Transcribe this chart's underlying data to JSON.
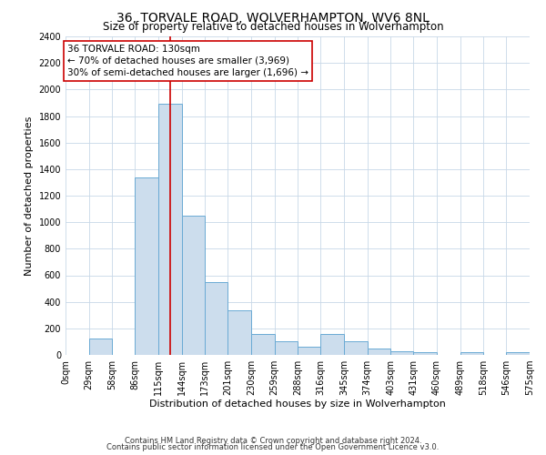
{
  "title": "36, TORVALE ROAD, WOLVERHAMPTON, WV6 8NL",
  "subtitle": "Size of property relative to detached houses in Wolverhampton",
  "xlabel": "Distribution of detached houses by size in Wolverhampton",
  "ylabel": "Number of detached properties",
  "bin_edges": [
    0,
    29,
    58,
    86,
    115,
    144,
    173,
    201,
    230,
    259,
    288,
    316,
    345,
    374,
    403,
    431,
    460,
    489,
    518,
    546,
    575
  ],
  "bin_counts": [
    0,
    125,
    0,
    1340,
    1890,
    1050,
    550,
    335,
    160,
    105,
    60,
    160,
    105,
    50,
    25,
    20,
    0,
    20,
    0,
    20
  ],
  "bar_color": "#ccdded",
  "bar_edge_color": "#6aaad4",
  "vline_x": 130,
  "vline_color": "#cc0000",
  "annotation_line1": "36 TORVALE ROAD: 130sqm",
  "annotation_line2": "← 70% of detached houses are smaller (3,969)",
  "annotation_line3": "30% of semi-detached houses are larger (1,696) →",
  "annotation_box_color": "#ffffff",
  "annotation_box_edge_color": "#cc0000",
  "ylim": [
    0,
    2400
  ],
  "yticks": [
    0,
    200,
    400,
    600,
    800,
    1000,
    1200,
    1400,
    1600,
    1800,
    2000,
    2200,
    2400
  ],
  "xtick_labels": [
    "0sqm",
    "29sqm",
    "58sqm",
    "86sqm",
    "115sqm",
    "144sqm",
    "173sqm",
    "201sqm",
    "230sqm",
    "259sqm",
    "288sqm",
    "316sqm",
    "345sqm",
    "374sqm",
    "403sqm",
    "431sqm",
    "460sqm",
    "489sqm",
    "518sqm",
    "546sqm",
    "575sqm"
  ],
  "footer1": "Contains HM Land Registry data © Crown copyright and database right 2024.",
  "footer2": "Contains public sector information licensed under the Open Government Licence v3.0.",
  "bg_color": "#ffffff",
  "grid_color": "#c8d8e8",
  "title_fontsize": 10,
  "subtitle_fontsize": 8.5,
  "axis_label_fontsize": 8,
  "tick_fontsize": 7,
  "annotation_fontsize": 7.5,
  "footer_fontsize": 6
}
